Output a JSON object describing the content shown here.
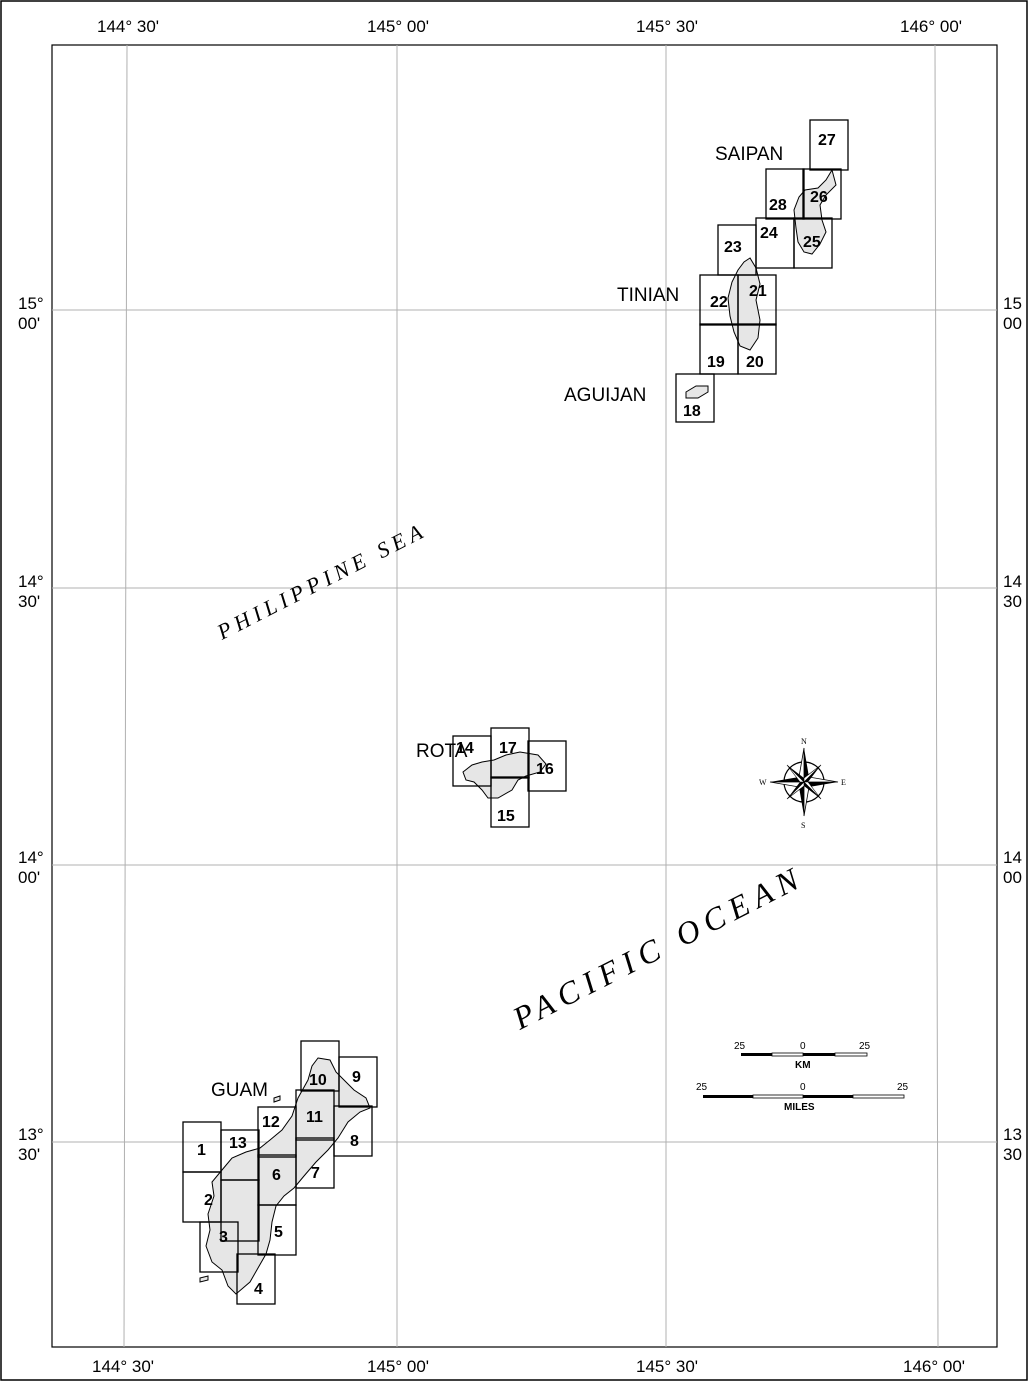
{
  "map": {
    "top_longitude_labels": [
      "144° 30'",
      "145° 00'",
      "145° 30'",
      "146° 00'"
    ],
    "bottom_longitude_labels": [
      "144° 30'",
      "145° 00'",
      "145° 30'",
      "146° 00'"
    ],
    "left_latitude_labels": [
      {
        "deg": "15°",
        "min": "00'"
      },
      {
        "deg": "14°",
        "min": "30'"
      },
      {
        "deg": "14°",
        "min": "00'"
      },
      {
        "deg": "13°",
        "min": "30'"
      }
    ],
    "right_latitude_labels": [
      {
        "deg": "15",
        "min": "00"
      },
      {
        "deg": "14",
        "min": "30"
      },
      {
        "deg": "14",
        "min": "00"
      },
      {
        "deg": "13",
        "min": "30"
      }
    ],
    "places": {
      "saipan": "SAIPAN",
      "tinian": "TINIAN",
      "aguijan": "AGUIJAN",
      "rota": "ROTA",
      "guam": "GUAM"
    },
    "water": {
      "sea": "PHILIPPINE  SEA",
      "ocean": "PACIFIC  OCEAN"
    },
    "sheets": [
      "1",
      "2",
      "3",
      "4",
      "5",
      "6",
      "7",
      "8",
      "9",
      "10",
      "11",
      "12",
      "13",
      "14",
      "15",
      "16",
      "17",
      "18",
      "19",
      "20",
      "21",
      "22",
      "23",
      "24",
      "25",
      "26",
      "27",
      "28"
    ],
    "compass": {
      "n": "N",
      "s": "S",
      "e": "E",
      "w": "W"
    },
    "scale_km": {
      "left": "25",
      "mid": "0",
      "right": "25",
      "unit": "KM"
    },
    "scale_miles": {
      "left": "25",
      "mid": "0",
      "right": "25",
      "unit": "MILES"
    },
    "colors": {
      "land": "#e6e6e6",
      "grid": "#b0b0b0",
      "ink": "#000000"
    }
  }
}
